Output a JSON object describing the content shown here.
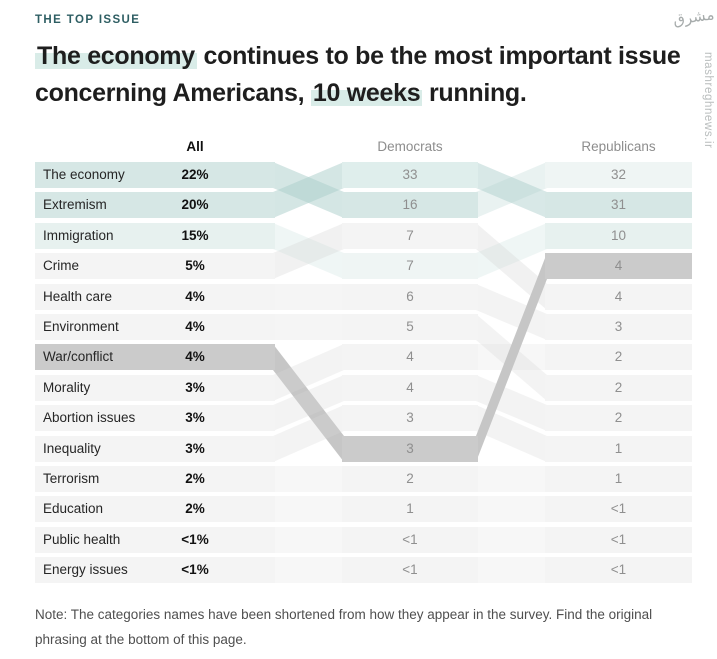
{
  "header": {
    "kicker": "THE TOP ISSUE",
    "title_lines": [
      [
        {
          "text": "The economy",
          "highlight": true
        },
        {
          "text": " continues to be the most important issue",
          "highlight": false
        }
      ],
      [
        {
          "text": "concerning Americans, ",
          "highlight": false
        },
        {
          "text": "10 weeks",
          "highlight": true
        },
        {
          "text": " running.",
          "highlight": false
        }
      ]
    ]
  },
  "note": {
    "lines": [
      "Note: The categories names have been shortened from how they appear in the survey. Find the original",
      "phrasing at the bottom of this page."
    ]
  },
  "watermark": {
    "site": "mashreghnews.ir",
    "logo_text": "مشرق"
  },
  "palette": {
    "teal": "#d6e7e5",
    "tealLight": "#dfeeec",
    "tealFaint": "#e7f1ef",
    "tealXFaint": "#eff5f4",
    "gray": "#cbcbcb",
    "plain": "#f4f4f4",
    "ribbonTeal": "#a9cdca",
    "ribbonGray": "#c6c6c6",
    "ribbonFaint": "#d8d8d8",
    "kicker_color": "#2e5e63",
    "title_highlight": "#d9ece8"
  },
  "chart_data": {
    "type": "table",
    "title": "The economy continues to be the most important issue concerning Americans, 10 weeks running.",
    "columns": [
      "All",
      "Democrats",
      "Republicans"
    ],
    "rows": [
      {
        "label": "The economy",
        "all": "22%",
        "dem": "33",
        "rep": "32"
      },
      {
        "label": "Extremism",
        "all": "20%",
        "dem": "16",
        "rep": "31"
      },
      {
        "label": "Immigration",
        "all": "15%",
        "dem": "7",
        "rep": "10"
      },
      {
        "label": "Crime",
        "all": "5%",
        "dem": "7",
        "rep": "4"
      },
      {
        "label": "Health care",
        "all": "4%",
        "dem": "6",
        "rep": "4"
      },
      {
        "label": "Environment",
        "all": "4%",
        "dem": "5",
        "rep": "3"
      },
      {
        "label": "War/conflict",
        "all": "4%",
        "dem": "4",
        "rep": "2"
      },
      {
        "label": "Morality",
        "all": "3%",
        "dem": "4",
        "rep": "2"
      },
      {
        "label": "Abortion issues",
        "all": "3%",
        "dem": "3",
        "rep": "2"
      },
      {
        "label": "Inequality",
        "all": "3%",
        "dem": "3",
        "rep": "1"
      },
      {
        "label": "Terrorism",
        "all": "2%",
        "dem": "2",
        "rep": "1"
      },
      {
        "label": "Education",
        "all": "2%",
        "dem": "1",
        "rep": "<1"
      },
      {
        "label": "Public health",
        "all": "<1%",
        "dem": "<1",
        "rep": "<1"
      },
      {
        "label": "Energy issues",
        "all": "<1%",
        "dem": "<1",
        "rep": "<1"
      }
    ],
    "bands": {
      "all": [
        "teal",
        "teal",
        "tealFaint",
        "plain",
        "plain",
        "plain",
        "gray",
        "plain",
        "plain",
        "plain",
        "plain",
        "plain",
        "plain",
        "plain"
      ],
      "dem": [
        "tealLight",
        "teal",
        "plain",
        "tealXFaint",
        "plain",
        "plain",
        "plain",
        "plain",
        "plain",
        "gray",
        "plain",
        "plain",
        "plain",
        "plain"
      ],
      "rep": [
        "tealXFaint",
        "teal",
        "tealFaint",
        "gray",
        "plain",
        "plain",
        "plain",
        "plain",
        "plain",
        "plain",
        "plain",
        "plain",
        "plain",
        "plain"
      ]
    },
    "flows": {
      "gap1": [
        {
          "from": 1,
          "to": 2,
          "color": "ribbonTeal",
          "opacity": 0.5
        },
        {
          "from": 2,
          "to": 1,
          "color": "ribbonTeal",
          "opacity": 0.5
        },
        {
          "from": 3,
          "to": 4,
          "color": "ribbonTeal",
          "opacity": 0.18
        },
        {
          "from": 4,
          "to": 3,
          "color": "ribbonFaint",
          "opacity": 0.35
        },
        {
          "from": 5,
          "to": 5,
          "color": "ribbonFaint",
          "opacity": 0.25
        },
        {
          "from": 6,
          "to": 6,
          "color": "ribbonFaint",
          "opacity": 0.25
        },
        {
          "from": 7,
          "to": 10,
          "color": "ribbonGray",
          "opacity": 1
        },
        {
          "from": 8,
          "to": 7,
          "color": "ribbonFaint",
          "opacity": 0.3
        },
        {
          "from": 9,
          "to": 8,
          "color": "ribbonFaint",
          "opacity": 0.3
        },
        {
          "from": 10,
          "to": 9,
          "color": "ribbonFaint",
          "opacity": 0.3
        },
        {
          "from": 11,
          "to": 11,
          "color": "ribbonFaint",
          "opacity": 0.2
        },
        {
          "from": 12,
          "to": 12,
          "color": "ribbonFaint",
          "opacity": 0.2
        },
        {
          "from": 13,
          "to": 13,
          "color": "ribbonFaint",
          "opacity": 0.2
        },
        {
          "from": 14,
          "to": 14,
          "color": "ribbonFaint",
          "opacity": 0.2
        }
      ],
      "gap2": [
        {
          "from": 1,
          "to": 2,
          "color": "ribbonTeal",
          "opacity": 0.45
        },
        {
          "from": 2,
          "to": 1,
          "color": "ribbonTeal",
          "opacity": 0.26
        },
        {
          "from": 4,
          "to": 3,
          "color": "ribbonTeal",
          "opacity": 0.18
        },
        {
          "from": 3,
          "to": 5,
          "color": "ribbonFaint",
          "opacity": 0.35
        },
        {
          "from": 5,
          "to": 6,
          "color": "ribbonFaint",
          "opacity": 0.3
        },
        {
          "from": 6,
          "to": 8,
          "color": "ribbonFaint",
          "opacity": 0.3
        },
        {
          "from": 7,
          "to": 7,
          "color": "ribbonFaint",
          "opacity": 0.2
        },
        {
          "from": 8,
          "to": 9,
          "color": "ribbonFaint",
          "opacity": 0.3
        },
        {
          "from": 9,
          "to": 10,
          "color": "ribbonFaint",
          "opacity": 0.3
        },
        {
          "from": 10,
          "to": 4,
          "color": "ribbonGray",
          "opacity": 1
        },
        {
          "from": 11,
          "to": 11,
          "color": "ribbonFaint",
          "opacity": 0.2
        },
        {
          "from": 12,
          "to": 12,
          "color": "ribbonFaint",
          "opacity": 0.2
        },
        {
          "from": 13,
          "to": 13,
          "color": "ribbonFaint",
          "opacity": 0.2
        },
        {
          "from": 14,
          "to": 14,
          "color": "ribbonFaint",
          "opacity": 0.2
        }
      ]
    },
    "highlighted_issues": [
      {
        "issue": "The economy",
        "color": "teal",
        "ranks": {
          "all": 1,
          "democrats": 2,
          "republicans": 1
        },
        "values": {
          "all": "22%",
          "democrats": "16",
          "republicans": "32"
        }
      },
      {
        "issue": "Extremism",
        "color": "teal",
        "ranks": {
          "all": 2,
          "democrats": 1,
          "republicans": 2
        },
        "values": {
          "all": "20%",
          "democrats": "33",
          "republicans": "31"
        }
      },
      {
        "issue": "War/conflict",
        "color": "gray",
        "ranks": {
          "all": 7,
          "democrats": 10,
          "republicans": 4
        },
        "values": {
          "all": "4%",
          "democrats": "3",
          "republicans": "4"
        }
      }
    ]
  }
}
